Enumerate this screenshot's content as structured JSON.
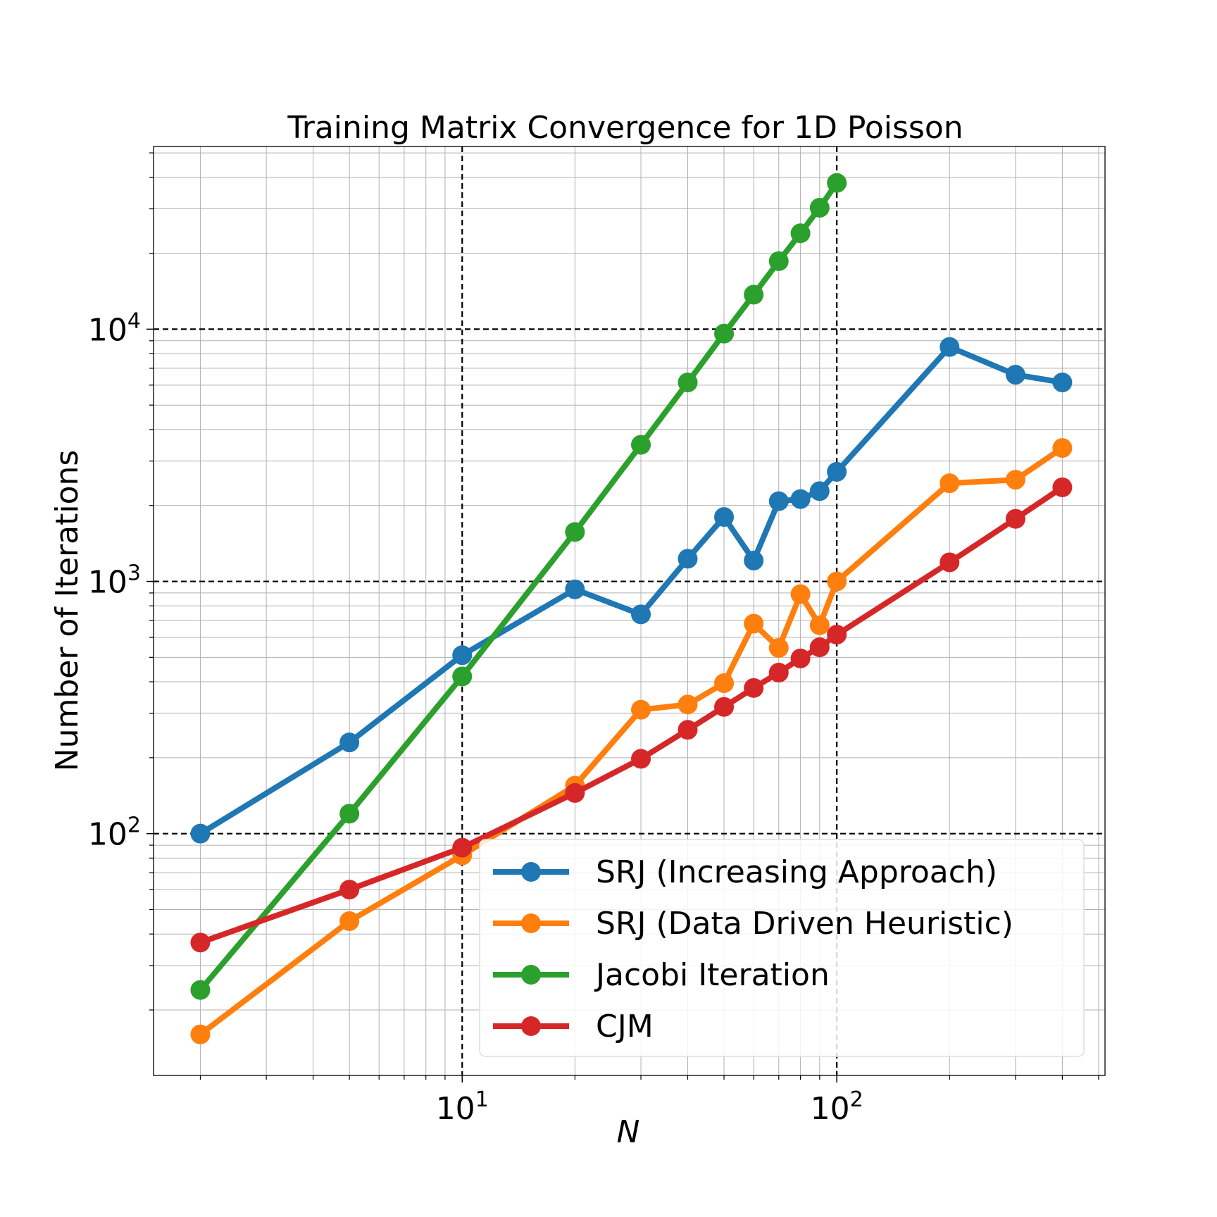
{
  "chart_data": {
    "type": "line",
    "title": "Training Matrix Convergence for 1D Poisson",
    "xlabel": "N",
    "ylabel": "Number of Iterations",
    "xscale": "log",
    "yscale": "log",
    "xlim": [
      1.5,
      520
    ],
    "ylim": [
      11,
      53000
    ],
    "grid": true,
    "legend_position": "lower-right",
    "x_ticks": [
      {
        "base": "10",
        "exp": "1",
        "value": 10
      },
      {
        "base": "10",
        "exp": "2",
        "value": 100
      }
    ],
    "y_ticks": [
      {
        "base": "10",
        "exp": "2",
        "value": 100
      },
      {
        "base": "10",
        "exp": "3",
        "value": 1000
      },
      {
        "base": "10",
        "exp": "4",
        "value": 10000
      }
    ],
    "series": [
      {
        "name": "SRJ (Increasing Approach)",
        "color": "#1f77b4",
        "x": [
          2,
          5,
          10,
          20,
          30,
          40,
          50,
          60,
          70,
          80,
          90,
          100,
          200,
          300,
          400
        ],
        "y": [
          100,
          230,
          510,
          930,
          740,
          1230,
          1800,
          1210,
          2080,
          2120,
          2280,
          2720,
          8500,
          6600,
          6150
        ]
      },
      {
        "name": "SRJ (Data Driven Heuristic)",
        "color": "#ff7f0e",
        "x": [
          2,
          5,
          10,
          20,
          30,
          40,
          50,
          60,
          70,
          80,
          90,
          100,
          200,
          300,
          400
        ],
        "y": [
          16,
          45,
          82,
          155,
          310,
          325,
          395,
          680,
          545,
          890,
          670,
          1000,
          2450,
          2530,
          3380
        ]
      },
      {
        "name": "Jacobi Iteration",
        "color": "#2ca02c",
        "x": [
          2,
          5,
          10,
          20,
          30,
          40,
          50,
          60,
          70,
          80,
          90,
          100
        ],
        "y": [
          24,
          120,
          420,
          1570,
          3480,
          6150,
          9600,
          13700,
          18600,
          24000,
          30300,
          38000
        ]
      },
      {
        "name": "CJM",
        "color": "#d62728",
        "x": [
          2,
          5,
          10,
          20,
          30,
          40,
          50,
          60,
          70,
          80,
          90,
          100,
          200,
          300,
          400
        ],
        "y": [
          37,
          60,
          88,
          145,
          198,
          258,
          318,
          378,
          435,
          495,
          548,
          615,
          1190,
          1770,
          2360
        ]
      }
    ]
  }
}
